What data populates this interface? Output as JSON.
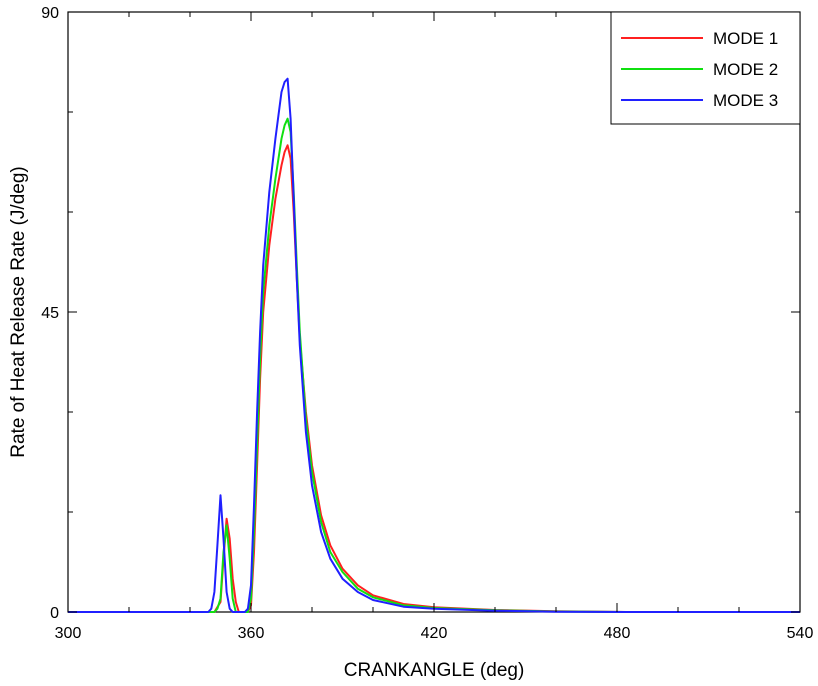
{
  "chart_data": {
    "type": "line",
    "xlabel": "CRANKANGLE (deg)",
    "ylabel": "Rate of Heat Release Rate (J/deg)",
    "xlim": [
      300,
      540
    ],
    "ylim": [
      0,
      90
    ],
    "x_ticks": [
      300,
      360,
      420,
      480,
      540
    ],
    "x_tick_labels": [
      "300",
      "360",
      "420",
      "480",
      "540"
    ],
    "y_ticks": [
      0,
      45,
      90
    ],
    "y_tick_labels": [
      "0",
      "45",
      "90"
    ],
    "grid": false,
    "legend_position": "top-right",
    "series": [
      {
        "name": "MODE 1",
        "color": "#ff2020",
        "x": [
          300,
          348,
          350,
          351,
          352,
          353,
          354,
          355,
          356,
          357,
          358,
          359,
          360,
          361,
          362,
          363,
          364,
          366,
          368,
          370,
          371,
          372,
          373,
          374,
          375,
          376,
          378,
          380,
          383,
          386,
          390,
          395,
          400,
          410,
          420,
          440,
          460,
          483,
          540
        ],
        "y": [
          0,
          0,
          1.5,
          8,
          14,
          11,
          5,
          1.5,
          0,
          0,
          0,
          0,
          1,
          9,
          22,
          35,
          45,
          55,
          62,
          67,
          69,
          70,
          68,
          60,
          50,
          41,
          30,
          22,
          14.5,
          10,
          6.5,
          4,
          2.5,
          1.2,
          0.7,
          0.3,
          0.1,
          0,
          0
        ]
      },
      {
        "name": "MODE 2",
        "color": "#10e010",
        "x": [
          300,
          348,
          349,
          350,
          351,
          352,
          353,
          354,
          355,
          356,
          357,
          358,
          359,
          360,
          361,
          362,
          363,
          364,
          366,
          368,
          370,
          371,
          372,
          373,
          374,
          375,
          376,
          378,
          380,
          383,
          386,
          390,
          395,
          400,
          410,
          420,
          440,
          460,
          483,
          540
        ],
        "y": [
          0,
          0,
          0.5,
          2,
          9,
          13,
          8,
          2,
          0,
          0,
          0,
          0,
          0,
          2,
          12,
          25,
          38,
          48,
          58,
          65,
          71,
          73,
          74,
          72,
          63,
          52,
          42,
          29,
          21,
          13.5,
          9,
          6,
          3.5,
          2.2,
          1,
          0.6,
          0.25,
          0.08,
          0,
          0
        ]
      },
      {
        "name": "MODE 3",
        "color": "#2020ff",
        "x": [
          300,
          346,
          347,
          348,
          349,
          350,
          351,
          352,
          353,
          354,
          355,
          356,
          357,
          358,
          359,
          360,
          361,
          362,
          363,
          364,
          366,
          368,
          370,
          371,
          372,
          373,
          374,
          375,
          376,
          378,
          380,
          383,
          386,
          390,
          395,
          400,
          410,
          420,
          440,
          460,
          483,
          540
        ],
        "y": [
          0,
          0,
          0.5,
          3,
          10,
          17.5,
          11,
          3,
          0.5,
          0,
          0,
          0,
          0,
          0,
          0.5,
          4,
          16,
          30,
          42,
          52,
          63,
          71,
          78,
          79.5,
          80,
          74,
          62,
          50,
          40,
          27,
          19,
          12,
          8,
          5,
          3,
          1.8,
          0.8,
          0.5,
          0.2,
          0.05,
          0,
          0
        ]
      }
    ]
  }
}
